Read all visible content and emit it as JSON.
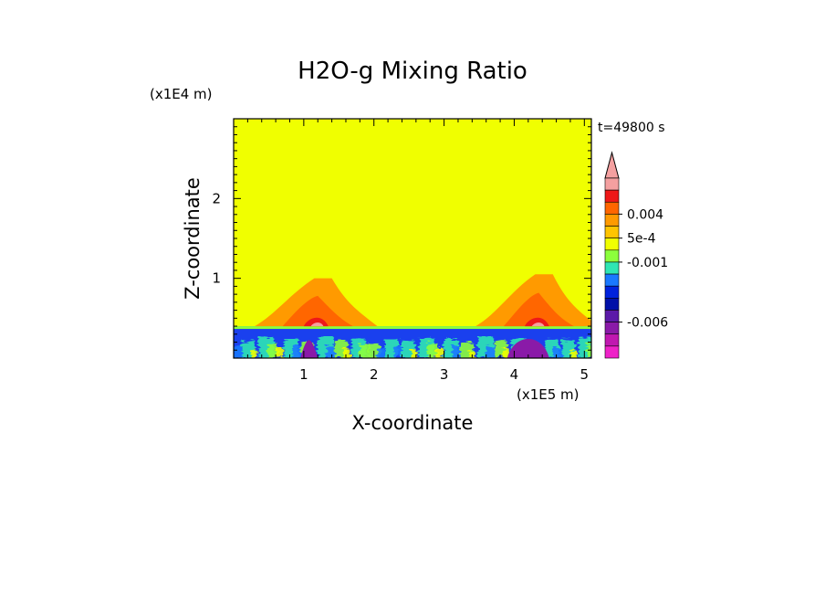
{
  "chart_data": {
    "type": "heatmap",
    "title": "H2O-g Mixing Ratio",
    "xlabel": "X-coordinate",
    "ylabel": "Z-coordinate",
    "x_unit": "(x1E5 m)",
    "y_unit": "(x1E4 m)",
    "time_label": "t=49800 s",
    "xlim": [
      0,
      5.1
    ],
    "ylim": [
      0,
      3
    ],
    "x_ticks": [
      1,
      2,
      3,
      4,
      5
    ],
    "x_tick_labels": [
      "1",
      "2",
      "3",
      "4",
      "5"
    ],
    "y_ticks": [
      1,
      2
    ],
    "y_tick_labels": [
      "1",
      "2"
    ],
    "background_color": "#f0ff00",
    "colorbar": {
      "levels_top_to_bottom": [
        {
          "color": "#f4a0a0"
        },
        {
          "color": "#ee1818"
        },
        {
          "color": "#ff6600"
        },
        {
          "color": "#ff9a00"
        },
        {
          "color": "#ffc400"
        },
        {
          "color": "#f0ff00"
        },
        {
          "color": "#8cff3c"
        },
        {
          "color": "#2fe6b4"
        },
        {
          "color": "#1a78ff"
        },
        {
          "color": "#0022dd"
        },
        {
          "color": "#0010a8"
        },
        {
          "color": "#5c1aa8"
        },
        {
          "color": "#8a1aa8"
        },
        {
          "color": "#c018b0"
        },
        {
          "color": "#ee22c8"
        }
      ],
      "labels": [
        "0.004",
        "5e-4",
        "-0.001",
        "-0.006"
      ]
    },
    "features": [
      {
        "kind": "layer",
        "z_range": [
          0,
          0.4
        ],
        "description_color": "#1a40ee"
      },
      {
        "kind": "plume",
        "x_center": 1.2,
        "z_top": 1.0
      },
      {
        "kind": "plume",
        "x_center": 4.35,
        "z_top": 1.05
      }
    ]
  }
}
